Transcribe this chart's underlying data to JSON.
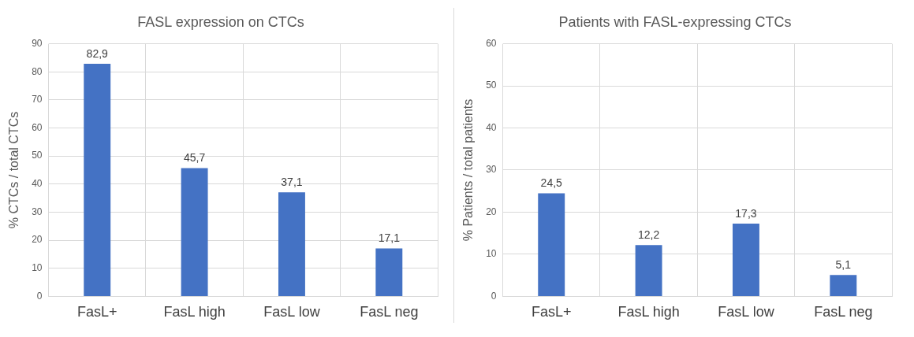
{
  "chart_data": [
    {
      "type": "bar",
      "title": "FASL expression on CTCs",
      "ylabel": "% CTCs / total CTCs",
      "categories": [
        "FasL+",
        "FasL high",
        "FasL low",
        "FasL neg"
      ],
      "values": [
        82.9,
        45.7,
        37.1,
        17.1
      ],
      "value_labels": [
        "82,9",
        "45,7",
        "37,1",
        "17,1"
      ],
      "color": "#4472c4",
      "ylim": [
        0,
        90
      ],
      "yticks": [
        0,
        10,
        20,
        30,
        40,
        50,
        60,
        70,
        80,
        90
      ],
      "grid": true
    },
    {
      "type": "bar",
      "title": "Patients with FASL-expressing CTCs",
      "ylabel": "% Patients / total patients",
      "categories": [
        "FasL+",
        "FasL high",
        "FasL low",
        "FasL neg"
      ],
      "values": [
        24.5,
        12.2,
        17.3,
        5.1
      ],
      "value_labels": [
        "24,5",
        "12,2",
        "17,3",
        "5,1"
      ],
      "color": "#4472c4",
      "ylim": [
        0,
        60
      ],
      "yticks": [
        0,
        10,
        20,
        30,
        40,
        50,
        60
      ],
      "grid": true
    }
  ]
}
